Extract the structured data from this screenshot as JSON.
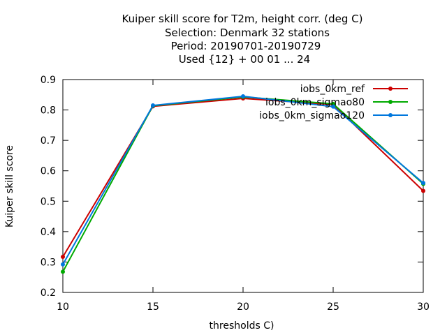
{
  "chart_data": {
    "type": "line",
    "title_lines": [
      "Kuiper skill score  for T2m, height corr. (deg C)",
      "Selection: Denmark      32 stations",
      "Period: 20190701-20190729",
      "Used {12} + 00 01 ... 24"
    ],
    "xlabel": "thresholds C)",
    "ylabel": "Kuiper skill score",
    "xlim": [
      10,
      30
    ],
    "ylim": [
      0.2,
      0.9
    ],
    "x_ticks": [
      10,
      15,
      20,
      25,
      30
    ],
    "y_ticks": [
      0.2,
      0.3,
      0.4,
      0.5,
      0.6,
      0.7,
      0.8,
      0.9
    ],
    "x": [
      10,
      15,
      20,
      25,
      30
    ],
    "legend_position": "top-right",
    "grid": false,
    "series": [
      {
        "name": "iobs_0km_ref",
        "color": "#cc0000",
        "values": [
          0.317,
          0.812,
          0.838,
          0.818,
          0.534
        ]
      },
      {
        "name": "iobs_0km_sigmao80",
        "color": "#00aa00",
        "values": [
          0.268,
          0.814,
          0.843,
          0.82,
          0.557
        ]
      },
      {
        "name": "iobs_0km_sigmao120",
        "color": "#0077dd",
        "values": [
          0.292,
          0.815,
          0.845,
          0.811,
          0.56
        ]
      }
    ]
  }
}
